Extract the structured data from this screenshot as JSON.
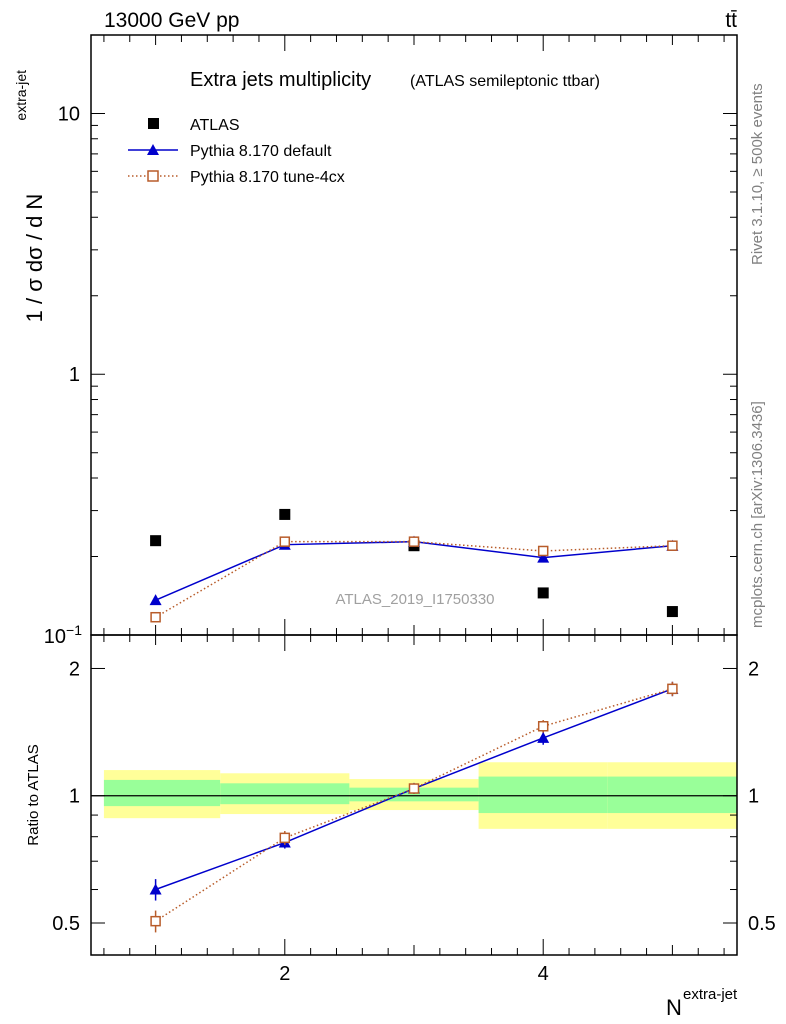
{
  "header": {
    "energy_label": "13000 GeV pp",
    "process_label": "tt̄"
  },
  "side_labels": {
    "rivet": "Rivet 3.1.10, ≥ 500k events",
    "mcplots": "mcplots.cern.ch [arXiv:1306.3436]"
  },
  "chart_data": [
    {
      "type": "scatter",
      "title": "Extra jets multiplicity",
      "subtitle": "(ATLAS semileptonic ttbar)",
      "watermark": "ATLAS_2019_I1750330",
      "ylabel": "1 / σ dσ / d N",
      "ylabel_sup": "extra-jet",
      "yscale": "log",
      "ylim": [
        0.1,
        20
      ],
      "xlim": [
        0.5,
        5.5
      ],
      "ytick_labels": [
        {
          "value": 0.1,
          "base": "10",
          "exp": "−1"
        },
        {
          "value": 1,
          "text": "1"
        },
        {
          "value": 10,
          "text": "10"
        }
      ],
      "legend_position": "top-left",
      "series": [
        {
          "name": "ATLAS",
          "color": "#000000",
          "marker": "filled-square",
          "x": [
            1,
            2,
            3,
            4,
            5
          ],
          "y": [
            0.23,
            0.29,
            0.22,
            0.145,
            0.123
          ]
        },
        {
          "name": "Pythia 8.170 default",
          "color": "#0000cc",
          "marker": "filled-triangle",
          "line": "solid",
          "x": [
            1,
            2,
            3,
            4,
            5
          ],
          "y": [
            0.136,
            0.222,
            0.228,
            0.198,
            0.22
          ]
        },
        {
          "name": "Pythia 8.170 tune-4cx",
          "color": "#b85c2a",
          "marker": "open-square",
          "line": "dotted",
          "x": [
            1,
            2,
            3,
            4,
            5
          ],
          "y": [
            0.117,
            0.228,
            0.228,
            0.21,
            0.22
          ]
        }
      ]
    },
    {
      "type": "line",
      "ylabel": "Ratio to ATLAS",
      "xlabel": "N",
      "xlabel_sup": "extra-jet",
      "yscale": "log",
      "ylim": [
        0.42,
        2.4
      ],
      "xlim": [
        0.5,
        5.5
      ],
      "ytick_labels": [
        {
          "value": 0.5,
          "text": "0.5"
        },
        {
          "value": 1,
          "text": "1"
        },
        {
          "value": 2,
          "text": "2"
        }
      ],
      "xtick_labels": [
        {
          "value": 2,
          "text": "2"
        },
        {
          "value": 4,
          "text": "4"
        }
      ],
      "bands": [
        {
          "xmin": 0.6,
          "xmax": 1.5,
          "inner": [
            0.945,
            1.09
          ],
          "outer": [
            0.885,
            1.15
          ]
        },
        {
          "xmin": 1.5,
          "xmax": 2.5,
          "inner": [
            0.955,
            1.07
          ],
          "outer": [
            0.905,
            1.13
          ]
        },
        {
          "xmin": 2.5,
          "xmax": 3.5,
          "inner": [
            0.97,
            1.045
          ],
          "outer": [
            0.925,
            1.095
          ]
        },
        {
          "xmin": 3.5,
          "xmax": 4.5,
          "inner": [
            0.91,
            1.11
          ],
          "outer": [
            0.835,
            1.2
          ]
        },
        {
          "xmin": 4.5,
          "xmax": 5.5,
          "inner": [
            0.91,
            1.11
          ],
          "outer": [
            0.835,
            1.2
          ]
        }
      ],
      "series": [
        {
          "name": "Pythia 8.170 default",
          "color": "#0000cc",
          "marker": "filled-triangle",
          "line": "solid",
          "x": [
            1,
            2,
            3,
            4,
            5
          ],
          "y": [
            0.6,
            0.775,
            1.04,
            1.37,
            1.79
          ],
          "err": [
            0.035,
            0.025,
            0.03,
            0.05,
            0.07
          ]
        },
        {
          "name": "Pythia 8.170 tune-4cx",
          "color": "#b85c2a",
          "marker": "open-square",
          "line": "dotted",
          "x": [
            1,
            2,
            3,
            4,
            5
          ],
          "y": [
            0.505,
            0.795,
            1.04,
            1.46,
            1.79
          ],
          "err": [
            0.03,
            0.03,
            0.03,
            0.05,
            0.07
          ]
        }
      ]
    }
  ]
}
